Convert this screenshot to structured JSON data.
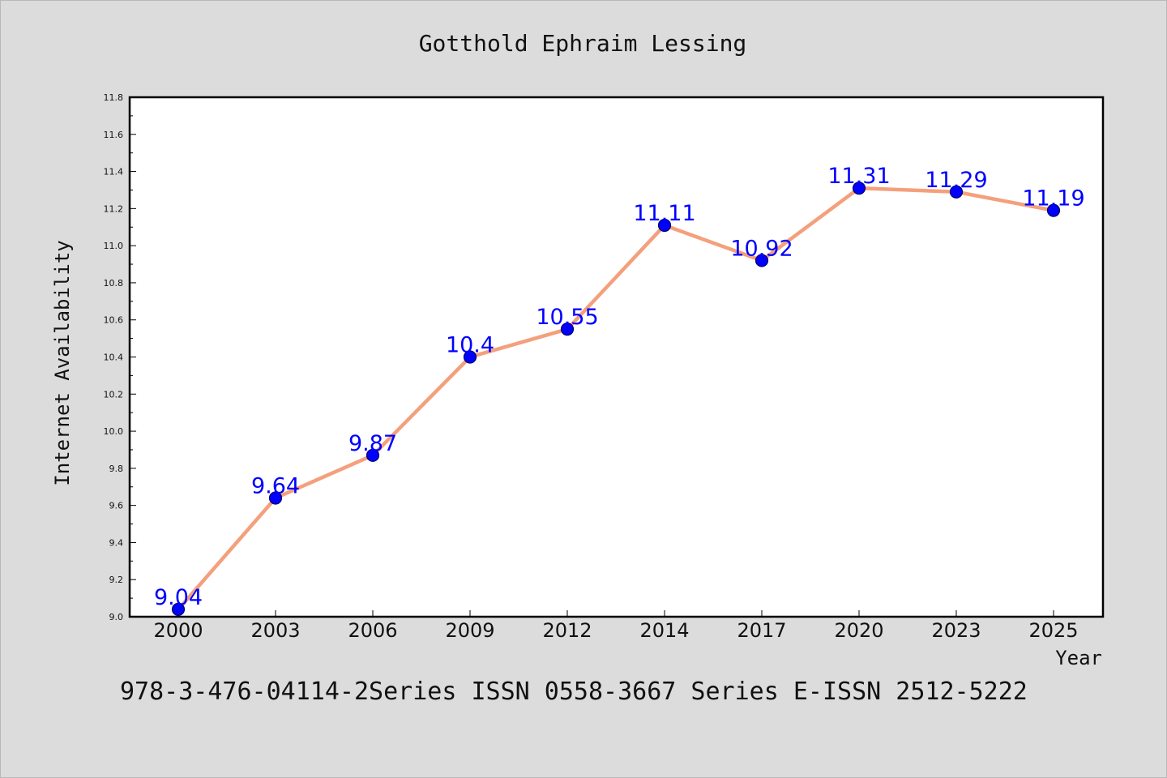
{
  "chart_data": {
    "type": "line",
    "title": "Gotthold Ephraim Lessing",
    "xlabel": "Year",
    "ylabel": "Internet Availability",
    "categories": [
      "2000",
      "2003",
      "2006",
      "2009",
      "2012",
      "2014",
      "2017",
      "2020",
      "2023",
      "2025"
    ],
    "series": [
      {
        "values": [
          9.04,
          9.64,
          9.87,
          10.4,
          10.55,
          11.11,
          10.92,
          11.31,
          11.29,
          11.19
        ],
        "data_labels": [
          "9.04",
          "9.64",
          "9.87",
          "10.4",
          "10.55",
          "11.11",
          "10.92",
          "11.31",
          "11.29",
          "11.19"
        ],
        "line_color": "#f4a07c",
        "marker_color": "#0000ff"
      }
    ],
    "ylim": [
      9.0,
      11.8
    ],
    "yticks": [
      "9.0",
      "9.2",
      "9.4",
      "9.6",
      "9.8",
      "10.0",
      "10.2",
      "10.4",
      "10.6",
      "10.8",
      "11.0",
      "11.2",
      "11.4",
      "11.6",
      "11.8"
    ],
    "grid": false,
    "legend": "none"
  },
  "footer_text": "978-3-476-04114-2Series ISSN 0558-3667 Series E-ISSN 2512-5222",
  "colors": {
    "background": "#dcdcdc",
    "plot_background": "#ffffff",
    "label_color": "#0000ff"
  }
}
